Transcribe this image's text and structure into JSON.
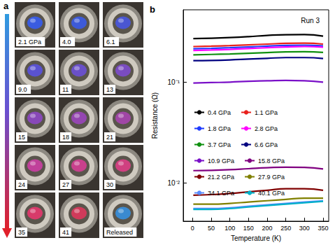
{
  "panel_a": {
    "label": "a",
    "images": [
      {
        "label": "2.1 GPa",
        "color": "#3a5ce0"
      },
      {
        "label": "4.0",
        "color": "#3d5ad8"
      },
      {
        "label": "6.1",
        "color": "#4a56d2"
      },
      {
        "label": "9.0",
        "color": "#5a52d0"
      },
      {
        "label": "11",
        "color": "#6a50c8"
      },
      {
        "label": "13",
        "color": "#7a4cc0"
      },
      {
        "label": "15",
        "color": "#8848b8"
      },
      {
        "label": "18",
        "color": "#9446b0"
      },
      {
        "label": "21",
        "color": "#a046a6"
      },
      {
        "label": "24",
        "color": "#c0409a"
      },
      {
        "label": "27",
        "color": "#c8408c"
      },
      {
        "label": "30",
        "color": "#d04080"
      },
      {
        "label": "35",
        "color": "#d83a6a"
      },
      {
        "label": "41",
        "color": "#d03a5a"
      },
      {
        "label": "Released",
        "color": "#3a8ad0"
      }
    ]
  },
  "chart_data": {
    "type": "line",
    "title": "b",
    "annotation": "Run 3",
    "x_label": "Temperature (K)",
    "y_label": "Resistance (Ω)",
    "x": [
      2,
      50,
      100,
      150,
      200,
      250,
      300,
      350
    ],
    "series": [
      {
        "name": "0.4 GPa",
        "color": "#000000",
        "values": [
          0.27,
          0.272,
          0.276,
          0.282,
          0.29,
          0.295,
          0.296,
          0.285
        ]
      },
      {
        "name": "1.1 GPa",
        "color": "#e8201c",
        "values": [
          0.225,
          0.227,
          0.23,
          0.234,
          0.238,
          0.242,
          0.243,
          0.238
        ]
      },
      {
        "name": "1.8 GPa",
        "color": "#1f3cff",
        "values": [
          0.214,
          0.216,
          0.219,
          0.223,
          0.227,
          0.231,
          0.232,
          0.228
        ]
      },
      {
        "name": "2.8 GPa",
        "color": "#ff00ff",
        "values": [
          0.206,
          0.208,
          0.211,
          0.215,
          0.219,
          0.223,
          0.225,
          0.222
        ]
      },
      {
        "name": "3.7 GPa",
        "color": "#109010",
        "values": [
          0.186,
          0.188,
          0.19,
          0.193,
          0.196,
          0.199,
          0.2,
          0.197
        ]
      },
      {
        "name": "6.6 GPa",
        "color": "#000080",
        "values": [
          0.163,
          0.164,
          0.166,
          0.169,
          0.172,
          0.175,
          0.175,
          0.171
        ]
      },
      {
        "name": "10.9 GPa",
        "color": "#7a10c8",
        "values": [
          0.098,
          0.099,
          0.1,
          0.102,
          0.103,
          0.104,
          0.103,
          0.1
        ]
      },
      {
        "name": "15.8 GPa",
        "color": "#800080",
        "values": [
          0.0133,
          0.0134,
          0.0136,
          0.0139,
          0.0142,
          0.0144,
          0.0143,
          0.0138
        ]
      },
      {
        "name": "21.2 GPa",
        "color": "#800000",
        "values": [
          0.0076,
          0.0077,
          0.0079,
          0.0082,
          0.0085,
          0.0088,
          0.0088,
          0.0085
        ]
      },
      {
        "name": "27.9 GPa",
        "color": "#808000",
        "values": [
          0.0062,
          0.0062,
          0.0063,
          0.0065,
          0.0067,
          0.0069,
          0.0071,
          0.0071
        ]
      },
      {
        "name": "34.1 GPa",
        "color": "#5a8cff",
        "values": [
          0.0056,
          0.0056,
          0.0057,
          0.0059,
          0.0061,
          0.0063,
          0.0065,
          0.0067
        ]
      },
      {
        "name": "40.1 GPa",
        "color": "#00b0c8",
        "values": [
          0.0055,
          0.0055,
          0.0056,
          0.0058,
          0.006,
          0.0062,
          0.0064,
          0.0066
        ]
      }
    ],
    "log": "y",
    "xlim": [
      -25,
      365
    ],
    "xticks": [
      0,
      50,
      100,
      150,
      200,
      250,
      300,
      350
    ],
    "ylim": [
      0.0042,
      0.52
    ],
    "yticks": [
      {
        "value": 0.01,
        "label": "10⁻²"
      },
      {
        "value": 0.1,
        "label": "10⁻¹"
      }
    ],
    "grid": false,
    "legend": "center"
  }
}
